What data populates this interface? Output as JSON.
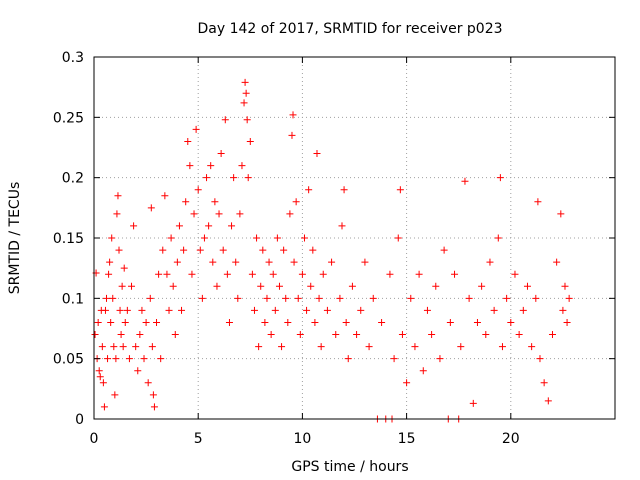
{
  "chart_data": {
    "type": "scatter",
    "title": "Day 142 of 2017, SRMTID for receiver p023",
    "xlabel": "GPS time / hours",
    "ylabel": "SRMTID / TECUs",
    "xlim": [
      0,
      25
    ],
    "ylim": [
      0,
      0.3
    ],
    "x_ticks": [
      0,
      5,
      10,
      15,
      20
    ],
    "y_ticks": [
      0,
      0.05,
      0.1,
      0.15,
      0.2,
      0.25,
      0.3
    ],
    "x_tick_labels": [
      "0",
      "5",
      "10",
      "15",
      "20"
    ],
    "y_tick_labels": [
      "0",
      "0.05",
      "0.1",
      "0.15",
      "0.2",
      "0.25",
      "0.3"
    ],
    "grid": true,
    "marker": "+",
    "color": "#ff0000",
    "series": [
      {
        "name": "SRMTID",
        "points": [
          [
            0.05,
            0.07
          ],
          [
            0.1,
            0.121
          ],
          [
            0.15,
            0.05
          ],
          [
            0.2,
            0.08
          ],
          [
            0.25,
            0.04
          ],
          [
            0.3,
            0.035
          ],
          [
            0.35,
            0.09
          ],
          [
            0.4,
            0.06
          ],
          [
            0.45,
            0.03
          ],
          [
            0.5,
            0.01
          ],
          [
            0.55,
            0.09
          ],
          [
            0.6,
            0.1
          ],
          [
            0.65,
            0.05
          ],
          [
            0.7,
            0.12
          ],
          [
            0.75,
            0.13
          ],
          [
            0.8,
            0.08
          ],
          [
            0.85,
            0.15
          ],
          [
            0.9,
            0.1
          ],
          [
            0.95,
            0.06
          ],
          [
            1.0,
            0.02
          ],
          [
            1.05,
            0.05
          ],
          [
            1.1,
            0.17
          ],
          [
            1.15,
            0.185
          ],
          [
            1.2,
            0.14
          ],
          [
            1.25,
            0.09
          ],
          [
            1.3,
            0.07
          ],
          [
            1.35,
            0.11
          ],
          [
            1.4,
            0.06
          ],
          [
            1.45,
            0.125
          ],
          [
            1.5,
            0.08
          ],
          [
            1.6,
            0.09
          ],
          [
            1.7,
            0.05
          ],
          [
            1.8,
            0.11
          ],
          [
            1.9,
            0.16
          ],
          [
            2.0,
            0.06
          ],
          [
            2.1,
            0.04
          ],
          [
            2.2,
            0.07
          ],
          [
            2.3,
            0.09
          ],
          [
            2.4,
            0.05
          ],
          [
            2.5,
            0.08
          ],
          [
            2.6,
            0.03
          ],
          [
            2.7,
            0.1
          ],
          [
            2.75,
            0.175
          ],
          [
            2.8,
            0.06
          ],
          [
            2.85,
            0.02
          ],
          [
            2.9,
            0.01
          ],
          [
            3.0,
            0.08
          ],
          [
            3.1,
            0.12
          ],
          [
            3.2,
            0.05
          ],
          [
            3.3,
            0.14
          ],
          [
            3.4,
            0.185
          ],
          [
            3.5,
            0.12
          ],
          [
            3.6,
            0.09
          ],
          [
            3.7,
            0.15
          ],
          [
            3.8,
            0.11
          ],
          [
            3.9,
            0.07
          ],
          [
            4.0,
            0.13
          ],
          [
            4.1,
            0.16
          ],
          [
            4.2,
            0.09
          ],
          [
            4.3,
            0.14
          ],
          [
            4.4,
            0.18
          ],
          [
            4.5,
            0.23
          ],
          [
            4.6,
            0.21
          ],
          [
            4.7,
            0.12
          ],
          [
            4.8,
            0.17
          ],
          [
            4.9,
            0.24
          ],
          [
            5.0,
            0.19
          ],
          [
            5.1,
            0.14
          ],
          [
            5.2,
            0.1
          ],
          [
            5.3,
            0.15
          ],
          [
            5.4,
            0.2
          ],
          [
            5.5,
            0.16
          ],
          [
            5.6,
            0.21
          ],
          [
            5.7,
            0.13
          ],
          [
            5.8,
            0.18
          ],
          [
            5.9,
            0.11
          ],
          [
            6.0,
            0.17
          ],
          [
            6.1,
            0.22
          ],
          [
            6.2,
            0.14
          ],
          [
            6.3,
            0.248
          ],
          [
            6.4,
            0.12
          ],
          [
            6.5,
            0.08
          ],
          [
            6.6,
            0.16
          ],
          [
            6.7,
            0.2
          ],
          [
            6.8,
            0.13
          ],
          [
            6.9,
            0.1
          ],
          [
            7.0,
            0.17
          ],
          [
            7.1,
            0.21
          ],
          [
            7.2,
            0.262
          ],
          [
            7.25,
            0.279
          ],
          [
            7.3,
            0.27
          ],
          [
            7.35,
            0.248
          ],
          [
            7.4,
            0.2
          ],
          [
            7.5,
            0.23
          ],
          [
            7.6,
            0.12
          ],
          [
            7.7,
            0.09
          ],
          [
            7.8,
            0.15
          ],
          [
            7.9,
            0.06
          ],
          [
            8.0,
            0.11
          ],
          [
            8.1,
            0.14
          ],
          [
            8.2,
            0.08
          ],
          [
            8.3,
            0.1
          ],
          [
            8.4,
            0.13
          ],
          [
            8.5,
            0.07
          ],
          [
            8.6,
            0.12
          ],
          [
            8.7,
            0.09
          ],
          [
            8.8,
            0.15
          ],
          [
            8.9,
            0.11
          ],
          [
            9.0,
            0.06
          ],
          [
            9.1,
            0.14
          ],
          [
            9.2,
            0.1
          ],
          [
            9.3,
            0.08
          ],
          [
            9.4,
            0.17
          ],
          [
            9.5,
            0.235
          ],
          [
            9.55,
            0.252
          ],
          [
            9.6,
            0.13
          ],
          [
            9.7,
            0.18
          ],
          [
            9.8,
            0.1
          ],
          [
            9.9,
            0.07
          ],
          [
            10.0,
            0.12
          ],
          [
            10.1,
            0.15
          ],
          [
            10.2,
            0.09
          ],
          [
            10.3,
            0.19
          ],
          [
            10.4,
            0.11
          ],
          [
            10.5,
            0.14
          ],
          [
            10.6,
            0.08
          ],
          [
            10.7,
            0.22
          ],
          [
            10.8,
            0.1
          ],
          [
            10.9,
            0.06
          ],
          [
            11.0,
            0.12
          ],
          [
            11.2,
            0.09
          ],
          [
            11.4,
            0.13
          ],
          [
            11.6,
            0.07
          ],
          [
            11.8,
            0.1
          ],
          [
            11.9,
            0.16
          ],
          [
            12.0,
            0.19
          ],
          [
            12.1,
            0.08
          ],
          [
            12.2,
            0.05
          ],
          [
            12.4,
            0.11
          ],
          [
            12.6,
            0.07
          ],
          [
            12.8,
            0.09
          ],
          [
            13.0,
            0.13
          ],
          [
            13.2,
            0.06
          ],
          [
            13.4,
            0.1
          ],
          [
            13.6,
            0.0
          ],
          [
            13.8,
            0.08
          ],
          [
            14.0,
            0.0
          ],
          [
            14.2,
            0.12
          ],
          [
            14.3,
            0.0
          ],
          [
            14.4,
            0.05
          ],
          [
            14.6,
            0.15
          ],
          [
            14.7,
            0.19
          ],
          [
            14.8,
            0.07
          ],
          [
            15.0,
            0.03
          ],
          [
            15.2,
            0.1
          ],
          [
            15.4,
            0.06
          ],
          [
            15.6,
            0.12
          ],
          [
            15.8,
            0.04
          ],
          [
            16.0,
            0.09
          ],
          [
            16.2,
            0.07
          ],
          [
            16.4,
            0.11
          ],
          [
            16.6,
            0.05
          ],
          [
            16.8,
            0.14
          ],
          [
            17.0,
            0.0
          ],
          [
            17.1,
            0.08
          ],
          [
            17.3,
            0.12
          ],
          [
            17.5,
            0.0
          ],
          [
            17.6,
            0.06
          ],
          [
            17.8,
            0.197
          ],
          [
            18.0,
            0.1
          ],
          [
            18.2,
            0.013
          ],
          [
            18.4,
            0.08
          ],
          [
            18.6,
            0.11
          ],
          [
            18.8,
            0.07
          ],
          [
            19.0,
            0.13
          ],
          [
            19.2,
            0.09
          ],
          [
            19.4,
            0.15
          ],
          [
            19.5,
            0.2
          ],
          [
            19.6,
            0.06
          ],
          [
            19.8,
            0.1
          ],
          [
            20.0,
            0.08
          ],
          [
            20.2,
            0.12
          ],
          [
            20.4,
            0.07
          ],
          [
            20.6,
            0.09
          ],
          [
            20.8,
            0.11
          ],
          [
            21.0,
            0.06
          ],
          [
            21.2,
            0.1
          ],
          [
            21.3,
            0.18
          ],
          [
            21.4,
            0.05
          ],
          [
            21.6,
            0.03
          ],
          [
            21.8,
            0.015
          ],
          [
            22.0,
            0.07
          ],
          [
            22.2,
            0.13
          ],
          [
            22.4,
            0.17
          ],
          [
            22.5,
            0.09
          ],
          [
            22.6,
            0.11
          ],
          [
            22.7,
            0.08
          ],
          [
            22.8,
            0.1
          ]
        ]
      }
    ]
  }
}
